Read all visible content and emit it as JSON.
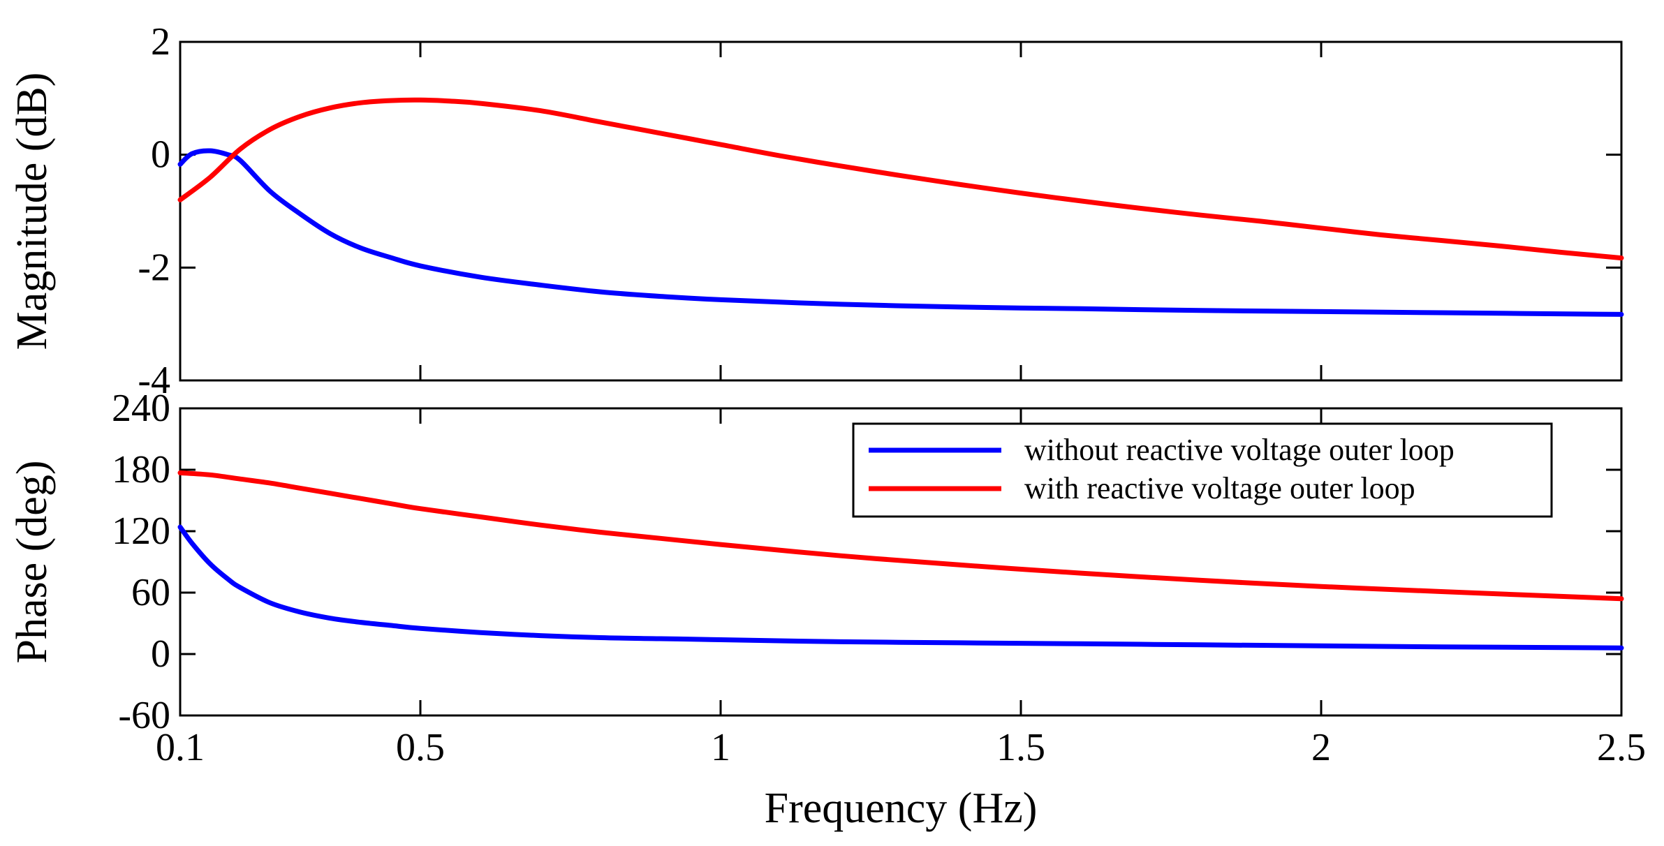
{
  "chart_data": [
    {
      "type": "line",
      "panel": "magnitude",
      "ylabel": "Magnitude  (dB)",
      "xlabel": "",
      "xlim": [
        0.1,
        2.5
      ],
      "ylim": [
        -4,
        2
      ],
      "yticks": [
        2,
        0,
        -2,
        -4
      ],
      "ytick_labels": [
        "2",
        "0",
        "-2",
        "-4"
      ],
      "xticks": [
        0.1,
        0.5,
        1,
        1.5,
        2,
        2.5
      ],
      "grid": false,
      "series": [
        {
          "name": "without reactive voltage outer loop",
          "color": "#0000ff",
          "x": [
            0.1,
            0.12,
            0.15,
            0.18,
            0.2,
            0.25,
            0.3,
            0.35,
            0.4,
            0.45,
            0.5,
            0.6,
            0.7,
            0.8,
            0.9,
            1.0,
            1.2,
            1.4,
            1.6,
            1.8,
            2.0,
            2.2,
            2.5
          ],
          "y": [
            -0.17,
            0.02,
            0.07,
            0.0,
            -0.1,
            -0.65,
            -1.05,
            -1.4,
            -1.65,
            -1.82,
            -1.97,
            -2.17,
            -2.31,
            -2.43,
            -2.51,
            -2.57,
            -2.65,
            -2.7,
            -2.73,
            -2.76,
            -2.78,
            -2.8,
            -2.83
          ]
        },
        {
          "name": "with reactive voltage outer loop",
          "color": "#ff0000",
          "x": [
            0.1,
            0.15,
            0.2,
            0.25,
            0.3,
            0.35,
            0.4,
            0.45,
            0.5,
            0.55,
            0.6,
            0.7,
            0.8,
            0.9,
            1.0,
            1.1,
            1.2,
            1.3,
            1.4,
            1.5,
            1.6,
            1.7,
            1.8,
            1.9,
            2.0,
            2.1,
            2.2,
            2.3,
            2.4,
            2.5
          ],
          "y": [
            -0.8,
            -0.4,
            0.1,
            0.45,
            0.68,
            0.83,
            0.92,
            0.96,
            0.97,
            0.95,
            0.91,
            0.78,
            0.58,
            0.38,
            0.18,
            -0.02,
            -0.2,
            -0.37,
            -0.53,
            -0.68,
            -0.82,
            -0.95,
            -1.07,
            -1.18,
            -1.3,
            -1.42,
            -1.52,
            -1.62,
            -1.73,
            -1.83
          ]
        }
      ]
    },
    {
      "type": "line",
      "panel": "phase",
      "ylabel": "Phase  (deg)",
      "xlabel": "Frequency  (Hz)",
      "xlim": [
        0.1,
        2.5
      ],
      "ylim": [
        -60,
        240
      ],
      "yticks": [
        240,
        180,
        120,
        60,
        0,
        -60
      ],
      "ytick_labels": [
        "240",
        "180",
        "120",
        "60",
        "0",
        "-60"
      ],
      "xticks": [
        0.1,
        0.5,
        1,
        1.5,
        2,
        2.5
      ],
      "xtick_labels": [
        "0.1",
        "0.5",
        "1",
        "1.5",
        "2",
        "2.5"
      ],
      "grid": false,
      "legend": {
        "placement": "top-right",
        "entries": [
          {
            "label": "without reactive voltage outer loop",
            "color": "#0000ff"
          },
          {
            "label": "with reactive voltage outer loop",
            "color": "#ff0000"
          }
        ]
      },
      "series": [
        {
          "name": "without reactive voltage outer loop",
          "color": "#0000ff",
          "x": [
            0.1,
            0.12,
            0.15,
            0.18,
            0.2,
            0.25,
            0.3,
            0.35,
            0.4,
            0.45,
            0.5,
            0.6,
            0.7,
            0.8,
            0.9,
            1.0,
            1.2,
            1.4,
            1.6,
            1.8,
            2.0,
            2.2,
            2.5
          ],
          "y": [
            124,
            108,
            88,
            73,
            65,
            50,
            41,
            35,
            31,
            28,
            25,
            21,
            18,
            16,
            15,
            14,
            12,
            11,
            10,
            9,
            8,
            7,
            6
          ]
        },
        {
          "name": "with reactive voltage outer loop",
          "color": "#ff0000",
          "x": [
            0.1,
            0.15,
            0.2,
            0.25,
            0.3,
            0.35,
            0.4,
            0.45,
            0.5,
            0.6,
            0.7,
            0.8,
            0.9,
            1.0,
            1.2,
            1.4,
            1.6,
            1.8,
            2.0,
            2.2,
            2.5
          ],
          "y": [
            177,
            175,
            171,
            167,
            162,
            157,
            152,
            147,
            142,
            134,
            126,
            119,
            113,
            107,
            96,
            87,
            79,
            72,
            66,
            61,
            54
          ]
        }
      ]
    }
  ]
}
